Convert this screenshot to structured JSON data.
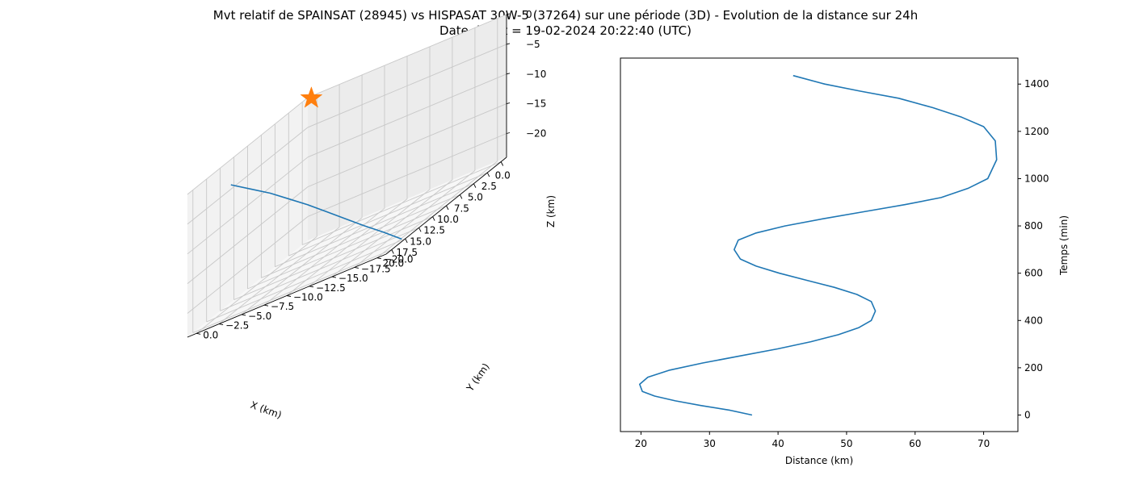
{
  "title_line1": "Mvt relatif de SPAINSAT (28945) vs HISPASAT 30W-5 (37264) sur une période (3D) - Evolution de la distance sur 24h",
  "title_line2": "Date début = 19-02-2024 20:22:40 (UTC)",
  "colors": {
    "series": "#1f77b4",
    "marker": "#ff7f0e"
  },
  "chart_data": [
    {
      "type": "line3d",
      "title": "",
      "xlabel": "X (km)",
      "ylabel": "Y (km)",
      "zlabel": "Z (km)",
      "x_ticks": [
        "0.0",
        "2.5",
        "5.0",
        "7.5",
        "10.0",
        "12.5",
        "15.0",
        "17.5",
        "20.0"
      ],
      "y_ticks": [
        "0.0",
        "−2.5",
        "−5.0",
        "−7.5",
        "−10.0",
        "−12.5",
        "−15.0",
        "−17.5",
        "−20.0"
      ],
      "z_ticks": [
        "0",
        "−5",
        "−10",
        "−15",
        "−20"
      ],
      "xlim": [
        -1,
        21
      ],
      "ylim": [
        1,
        -21
      ],
      "zlim": [
        -24,
        0
      ],
      "grid": true,
      "marker": {
        "shape": "star",
        "x": 0,
        "y": 0,
        "z": 0
      },
      "series": [
        {
          "x": [
            19.8,
            20.2,
            20.6,
            21.0,
            21.3,
            21.6,
            21.9,
            22.2,
            22.5,
            22.8
          ],
          "y": [
            -22.0,
            -20.2,
            -18.3,
            -16.5,
            -14.6,
            -12.7,
            -10.8,
            -8.9,
            -6.9,
            -4.9
          ],
          "z": [
            -23.0,
            -20.4,
            -17.8,
            -15.2,
            -12.6,
            -10.0,
            -7.6,
            -5.2,
            -3.0,
            -0.8
          ]
        }
      ]
    },
    {
      "type": "line",
      "title": "",
      "xlabel": "Distance (km)",
      "ylabel": "Temps (min)",
      "x_ticks": [
        20,
        30,
        40,
        50,
        60,
        70
      ],
      "y_ticks": [
        0,
        200,
        400,
        600,
        800,
        1000,
        1200,
        1400
      ],
      "xlim": [
        17,
        75
      ],
      "ylim": [
        -70,
        1510
      ],
      "grid": false,
      "yaxis_position": "right",
      "series": [
        {
          "x": [
            36.2,
            33.0,
            28.8,
            25.0,
            22.0,
            20.2,
            19.8,
            21.0,
            24.2,
            29.0,
            34.5,
            40.0,
            44.8,
            48.8,
            51.8,
            53.6,
            54.2,
            53.6,
            51.5,
            48.2,
            44.2,
            40.2,
            36.8,
            34.5,
            33.6,
            34.2,
            36.8,
            41.0,
            46.5,
            52.5,
            58.5,
            63.8,
            67.8,
            70.6,
            71.9,
            71.7,
            70.0,
            66.8,
            62.6,
            57.6,
            52.0,
            46.8,
            42.2
          ],
          "y": [
            0,
            20,
            40,
            60,
            80,
            100,
            130,
            160,
            190,
            220,
            250,
            280,
            310,
            340,
            370,
            400,
            440,
            480,
            510,
            540,
            570,
            600,
            630,
            660,
            700,
            740,
            770,
            800,
            830,
            860,
            890,
            920,
            960,
            1000,
            1080,
            1160,
            1220,
            1260,
            1300,
            1340,
            1370,
            1400,
            1436
          ]
        }
      ]
    }
  ]
}
